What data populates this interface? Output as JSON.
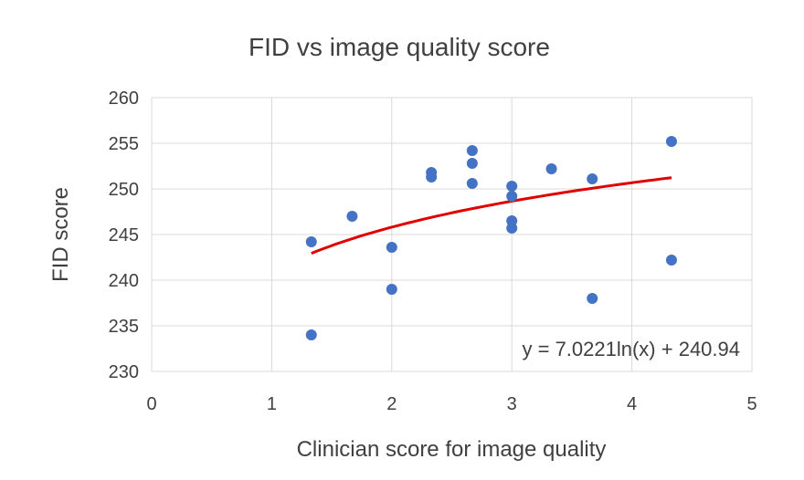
{
  "chart_data": {
    "type": "scatter",
    "title": "FID vs image quality score",
    "xlabel": "Clinician score for image quality",
    "ylabel": "FID score",
    "xlim": [
      0,
      5
    ],
    "ylim": [
      230,
      260
    ],
    "x_ticks": [
      0,
      1,
      2,
      3,
      4,
      5
    ],
    "y_ticks": [
      230,
      235,
      240,
      245,
      250,
      255,
      260
    ],
    "grid": true,
    "legend": "none",
    "series": [
      {
        "color": "#4472c4",
        "points": [
          [
            1.33,
            244.2
          ],
          [
            1.33,
            234.0
          ],
          [
            1.67,
            247.0
          ],
          [
            2.0,
            243.6
          ],
          [
            2.0,
            239.0
          ],
          [
            2.33,
            251.8
          ],
          [
            2.33,
            251.3
          ],
          [
            2.67,
            254.2
          ],
          [
            2.67,
            252.8
          ],
          [
            2.67,
            250.6
          ],
          [
            3.0,
            250.3
          ],
          [
            3.0,
            249.2
          ],
          [
            3.0,
            246.5
          ],
          [
            3.0,
            245.7
          ],
          [
            3.33,
            252.2
          ],
          [
            3.67,
            251.1
          ],
          [
            3.67,
            238.0
          ],
          [
            4.33,
            255.2
          ],
          [
            4.33,
            242.2
          ]
        ]
      }
    ],
    "trendline": {
      "type": "logarithmic",
      "a": 7.0221,
      "b": 240.94,
      "x_range": [
        1.33,
        4.33
      ],
      "color": "#e00000",
      "label": "y = 7.0221ln(x) + 240.94"
    }
  }
}
